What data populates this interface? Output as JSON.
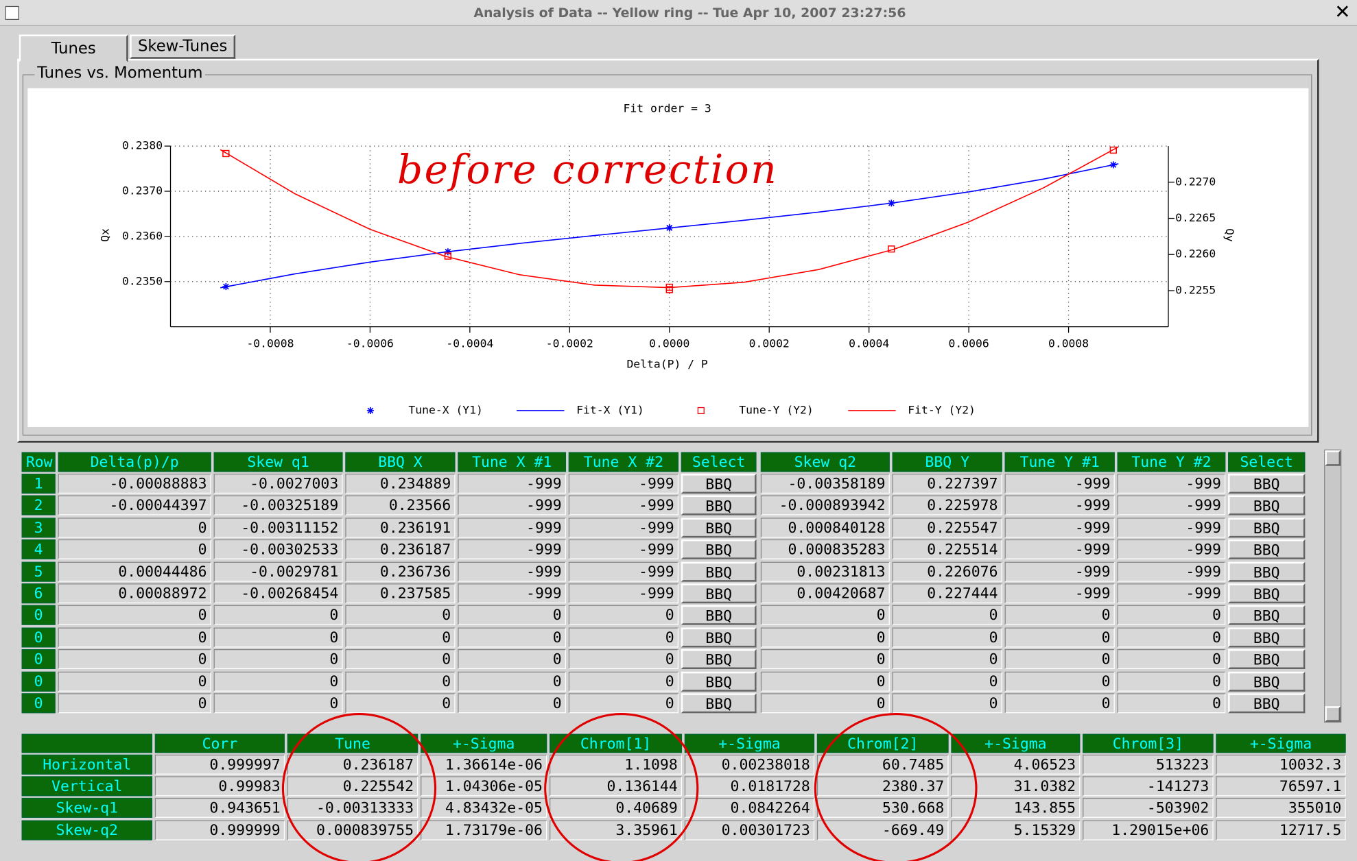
{
  "window": {
    "title": "Analysis of Data -- Yellow ring -- Tue Apr 10, 2007 23:27:56"
  },
  "tabs": [
    "Tunes",
    "Skew-Tunes"
  ],
  "group_title": "Tunes vs. Momentum",
  "chart_data": {
    "type": "line",
    "title": "Fit order = 3",
    "annotation": "before correction",
    "x_label": "Delta(P) / P",
    "y_label": "Qx",
    "y2_label": "Qy",
    "xlim": [
      -0.001,
      0.001
    ],
    "ylim": [
      0.234,
      0.238
    ],
    "y2lim": [
      0.225,
      0.2275
    ],
    "xticks": [
      -0.0008,
      -0.0006,
      -0.0004,
      -0.0002,
      {
        "value": 0,
        "label": "0.0000"
      },
      0.0002,
      0.0004,
      0.0006,
      0.0008
    ],
    "yticks": [
      {
        "value": 0.235,
        "label": "0.2350"
      },
      {
        "value": 0.236,
        "label": "0.2360"
      },
      {
        "value": 0.237,
        "label": "0.2370"
      },
      {
        "value": 0.238,
        "label": "0.2380"
      }
    ],
    "y2ticks": [
      0.2255,
      {
        "value": 0.226,
        "label": "0.2260"
      },
      0.2265,
      {
        "value": 0.227,
        "label": "0.2270"
      }
    ],
    "grid": true,
    "series": [
      {
        "name": "Tune-X (Y1)",
        "color": "#0000ff",
        "marker": "star",
        "x": [
          -0.00088883,
          -0.00044397,
          0,
          0,
          0.00044486,
          0.00088972
        ],
        "values": [
          0.234889,
          0.23566,
          0.236191,
          0.236187,
          0.236736,
          0.237585
        ]
      },
      {
        "name": "Fit-X (Y1)",
        "color": "#0000ff",
        "x": [
          -0.0009,
          -0.00075,
          -0.0006,
          -0.00045,
          -0.0003,
          -0.00015,
          0,
          0.00015,
          0.0003,
          0.00045,
          0.0006,
          0.00075,
          0.0009
        ],
        "values": [
          0.234863,
          0.235172,
          0.235432,
          0.235653,
          0.235846,
          0.23602,
          0.236187,
          0.236357,
          0.236539,
          0.236745,
          0.236986,
          0.23727,
          0.237609
        ]
      },
      {
        "name": "Tune-Y (Y2)",
        "color": "#ff0000",
        "marker": "square",
        "axis": "y2",
        "x": [
          -0.00088883,
          -0.00044397,
          0,
          0,
          0.00044486,
          0.00088972
        ],
        "values": [
          0.227397,
          0.225978,
          0.225547,
          0.225514,
          0.226076,
          0.227444
        ]
      },
      {
        "name": "Fit-Y (Y2)",
        "color": "#ff0000",
        "axis": "y2",
        "x": [
          -0.0009,
          -0.00075,
          -0.0006,
          -0.00045,
          -0.0003,
          -0.00015,
          0,
          0.00015,
          0.0003,
          0.00045,
          0.0006,
          0.00075,
          0.0009
        ],
        "values": [
          0.227451,
          0.226838,
          0.226348,
          0.225976,
          0.225719,
          0.225576,
          0.225542,
          0.225616,
          0.225793,
          0.226072,
          0.22645,
          0.226923,
          0.22749
        ]
      }
    ]
  },
  "table": {
    "columns": [
      "Row",
      "Delta(p)/p",
      "Skew q1",
      "BBQ X",
      "Tune X #1",
      "Tune X #2",
      "Select",
      "Skew q2",
      "BBQ Y",
      "Tune Y #1",
      "Tune Y #2",
      "Select"
    ],
    "rows": [
      [
        "1",
        "-0.00088883",
        "-0.0027003",
        "0.234889",
        "-999",
        "-999",
        "BBQ",
        "-0.00358189",
        "0.227397",
        "-999",
        "-999",
        "BBQ"
      ],
      [
        "2",
        "-0.00044397",
        "-0.00325189",
        "0.23566",
        "-999",
        "-999",
        "BBQ",
        "-0.000893942",
        "0.225978",
        "-999",
        "-999",
        "BBQ"
      ],
      [
        "3",
        "0",
        "-0.00311152",
        "0.236191",
        "-999",
        "-999",
        "BBQ",
        "0.000840128",
        "0.225547",
        "-999",
        "-999",
        "BBQ"
      ],
      [
        "4",
        "0",
        "-0.00302533",
        "0.236187",
        "-999",
        "-999",
        "BBQ",
        "0.000835283",
        "0.225514",
        "-999",
        "-999",
        "BBQ"
      ],
      [
        "5",
        "0.00044486",
        "-0.0029781",
        "0.236736",
        "-999",
        "-999",
        "BBQ",
        "0.00231813",
        "0.226076",
        "-999",
        "-999",
        "BBQ"
      ],
      [
        "6",
        "0.00088972",
        "-0.00268454",
        "0.237585",
        "-999",
        "-999",
        "BBQ",
        "0.00420687",
        "0.227444",
        "-999",
        "-999",
        "BBQ"
      ],
      [
        "0",
        "0",
        "0",
        "0",
        "0",
        "0",
        "BBQ",
        "0",
        "0",
        "0",
        "0",
        "BBQ"
      ],
      [
        "0",
        "0",
        "0",
        "0",
        "0",
        "0",
        "BBQ",
        "0",
        "0",
        "0",
        "0",
        "BBQ"
      ],
      [
        "0",
        "0",
        "0",
        "0",
        "0",
        "0",
        "BBQ",
        "0",
        "0",
        "0",
        "0",
        "BBQ"
      ],
      [
        "0",
        "0",
        "0",
        "0",
        "0",
        "0",
        "BBQ",
        "0",
        "0",
        "0",
        "0",
        "BBQ"
      ],
      [
        "0",
        "0",
        "0",
        "0",
        "0",
        "0",
        "BBQ",
        "0",
        "0",
        "0",
        "0",
        "BBQ"
      ]
    ]
  },
  "results": {
    "columns": [
      "Corr",
      "Tune",
      "+-Sigma",
      "Chrom[1]",
      "+-Sigma",
      "Chrom[2]",
      "+-Sigma",
      "Chrom[3]",
      "+-Sigma"
    ],
    "rows": [
      [
        "Horizontal",
        "0.999997",
        "0.236187",
        "1.36614e-06",
        "1.1098",
        "0.00238018",
        "60.7485",
        "4.06523",
        "513223",
        "10032.3"
      ],
      [
        "Vertical",
        "0.99983",
        "0.225542",
        "1.04306e-05",
        "0.136144",
        "0.0181728",
        "2380.37",
        "31.0382",
        "-141273",
        "76597.1"
      ],
      [
        "Skew-q1",
        "0.943651",
        "-0.00313333",
        "4.83432e-05",
        "0.40689",
        "0.0842264",
        "530.668",
        "143.855",
        "-503902",
        "355010"
      ],
      [
        "Skew-q2",
        "0.999999",
        "0.000839755",
        "1.73179e-06",
        "3.35961",
        "0.00301723",
        "-669.49",
        "5.15329",
        "1.29015e+06",
        "12717.5"
      ]
    ]
  }
}
